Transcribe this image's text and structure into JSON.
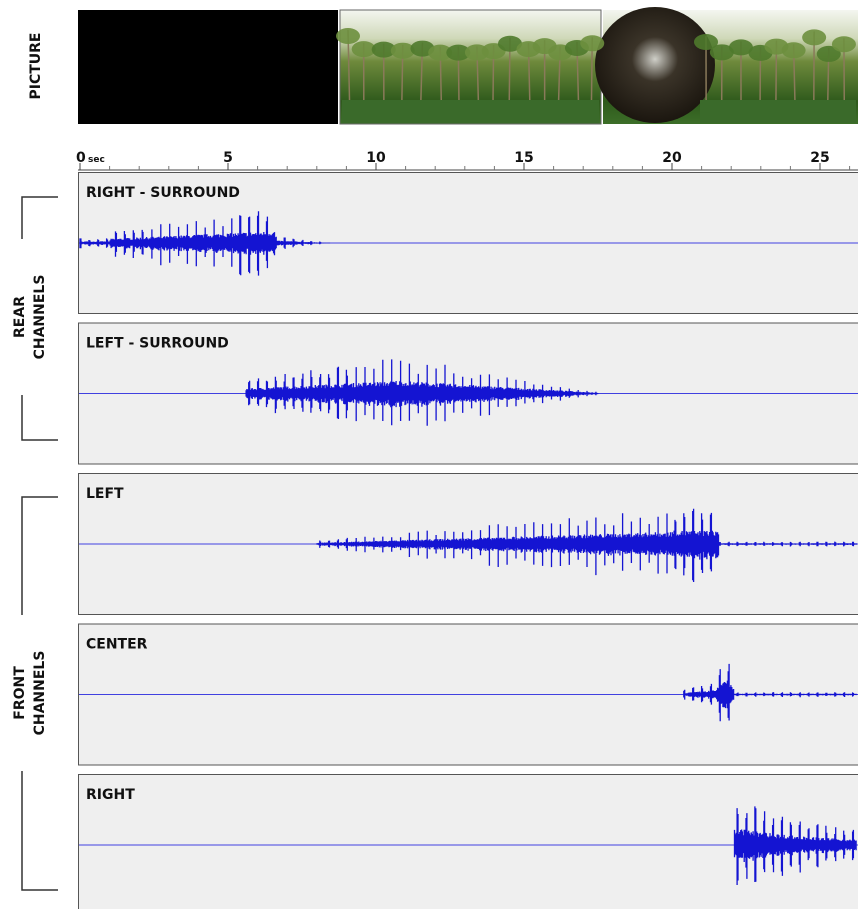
{
  "picture_label": "PICTURE",
  "timeline": {
    "unit": "sec",
    "ticks": [
      0,
      5,
      10,
      15,
      20,
      25
    ]
  },
  "groups": [
    {
      "lines": [
        "REAR",
        "CHANNELS"
      ]
    },
    {
      "lines": [
        "FRONT",
        "CHANNELS"
      ]
    }
  ],
  "channels": [
    {
      "label": "RIGHT - SURROUND"
    },
    {
      "label": "LEFT - SURROUND"
    },
    {
      "label": "LEFT"
    },
    {
      "label": "CENTER"
    },
    {
      "label": "RIGHT"
    }
  ]
}
